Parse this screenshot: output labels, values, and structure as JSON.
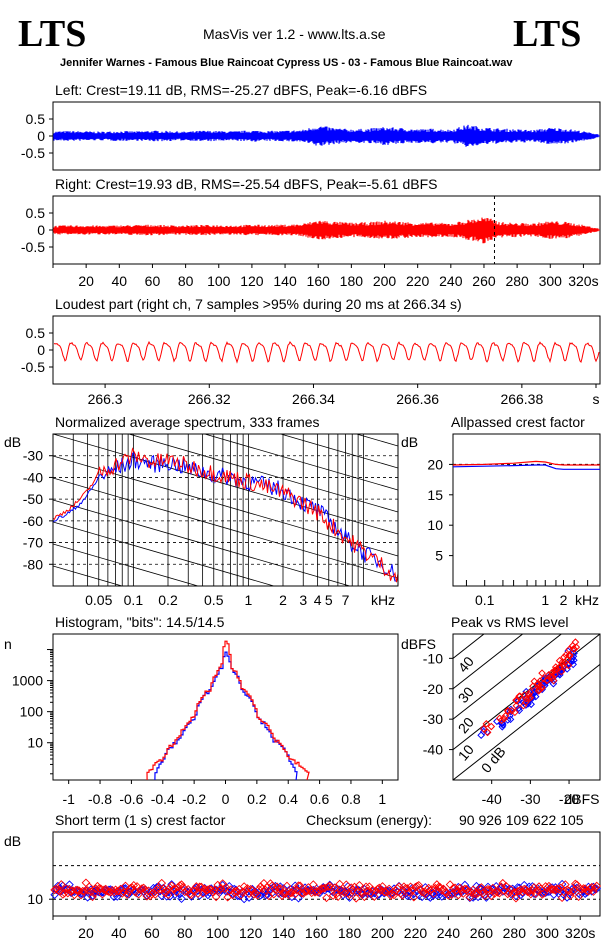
{
  "header": {
    "logo_left": "LTS",
    "logo_right": "LTS",
    "app_title": "MasVis ver 1.2 - www.lts.a.se",
    "file_name": "Jennifer Warnes - Famous Blue Raincoat Cypress US - 03 - Famous Blue Raincoat.wav"
  },
  "colors": {
    "left": "#0000ff",
    "right": "#ff0000",
    "axis": "#000000"
  },
  "chart_data": [
    {
      "id": "left",
      "type": "line",
      "title": "Left: Crest=19.11 dB, RMS=-25.27 dBFS, Peak=-6.16 dBFS",
      "yticks": [
        "0.5",
        "0",
        "-0.5"
      ],
      "ylim": [
        -1,
        1
      ],
      "xlim": [
        0,
        330
      ],
      "series": [
        {
          "color": "#0000ff",
          "x": [
            0,
            10,
            20,
            30,
            40,
            50,
            60,
            70,
            80,
            90,
            100,
            110,
            120,
            130,
            140,
            150,
            160,
            170,
            180,
            190,
            200,
            210,
            220,
            230,
            240,
            250,
            260,
            270,
            280,
            290,
            300,
            310,
            320,
            330
          ],
          "values": [
            0.14,
            0.15,
            0.14,
            0.13,
            0.15,
            0.14,
            0.16,
            0.15,
            0.13,
            0.16,
            0.15,
            0.14,
            0.17,
            0.15,
            0.16,
            0.18,
            0.32,
            0.24,
            0.2,
            0.22,
            0.27,
            0.24,
            0.2,
            0.22,
            0.19,
            0.34,
            0.26,
            0.22,
            0.2,
            0.18,
            0.25,
            0.22,
            0.14,
            0.05
          ]
        }
      ]
    },
    {
      "id": "right",
      "type": "line",
      "title": "Right: Crest=19.93 dB, RMS=-25.54 dBFS, Peak=-5.61 dBFS",
      "yticks": [
        "0.5",
        "0",
        "-0.5"
      ],
      "ylim": [
        -1,
        1
      ],
      "xlim": [
        0,
        330
      ],
      "xticks": [
        "20",
        "40",
        "60",
        "80",
        "100",
        "120",
        "140",
        "160",
        "180",
        "200",
        "220",
        "240",
        "260",
        "280",
        "300",
        "320s"
      ],
      "marker_x": 266.34,
      "series": [
        {
          "color": "#ff0000",
          "x": [
            0,
            10,
            20,
            30,
            40,
            50,
            60,
            70,
            80,
            90,
            100,
            110,
            120,
            130,
            140,
            150,
            160,
            170,
            180,
            190,
            200,
            210,
            220,
            230,
            240,
            250,
            260,
            270,
            280,
            290,
            300,
            310,
            320,
            330
          ],
          "values": [
            0.13,
            0.14,
            0.14,
            0.13,
            0.14,
            0.15,
            0.16,
            0.14,
            0.14,
            0.15,
            0.15,
            0.14,
            0.16,
            0.15,
            0.16,
            0.18,
            0.3,
            0.25,
            0.22,
            0.23,
            0.28,
            0.25,
            0.22,
            0.22,
            0.2,
            0.3,
            0.4,
            0.24,
            0.21,
            0.2,
            0.27,
            0.24,
            0.15,
            0.04
          ]
        }
      ]
    },
    {
      "id": "loudest",
      "type": "line",
      "title": "Loudest part (right ch, 7 samples >95% during 20 ms at 266.34 s)",
      "yticks": [
        "0.5",
        "0",
        "-0.5"
      ],
      "ylim": [
        -1,
        1
      ],
      "xlim": [
        266.29,
        266.395
      ],
      "xticks": [
        "266.3",
        "266.32",
        "266.34",
        "266.36",
        "266.38",
        "s"
      ],
      "series": [
        {
          "color": "#ff0000",
          "cycles": 35,
          "amplitude": 0.3
        }
      ]
    },
    {
      "id": "spectrum",
      "type": "line",
      "title": "Normalized average spectrum, 333 frames",
      "ylabel": "dB",
      "yticks": [
        "-30",
        "-40",
        "-50",
        "-60",
        "-70",
        "-80"
      ],
      "ylim": [
        -90,
        -20
      ],
      "xticks": [
        "0.05",
        "0.1",
        "0.2",
        "0.5",
        "1",
        "2",
        "3",
        "4",
        "5",
        "7",
        "kHz"
      ],
      "series": [
        {
          "color": "#0000ff",
          "x": [
            0.02,
            0.03,
            0.04,
            0.05,
            0.07,
            0.1,
            0.15,
            0.2,
            0.3,
            0.5,
            0.7,
            1,
            1.5,
            2,
            3,
            4,
            5,
            7,
            10,
            15,
            20
          ],
          "values": [
            -60,
            -55,
            -48,
            -40,
            -36,
            -32,
            -34,
            -33,
            -36,
            -39,
            -40,
            -42,
            -44,
            -46,
            -52,
            -55,
            -60,
            -68,
            -75,
            -80,
            -86
          ]
        },
        {
          "color": "#ff0000",
          "x": [
            0.02,
            0.03,
            0.04,
            0.05,
            0.07,
            0.1,
            0.15,
            0.2,
            0.3,
            0.5,
            0.7,
            1,
            1.5,
            2,
            3,
            4,
            5,
            7,
            10,
            15,
            20
          ],
          "values": [
            -59,
            -53,
            -46,
            -38,
            -34,
            -30,
            -33,
            -32,
            -35,
            -38,
            -40,
            -42,
            -45,
            -47,
            -52,
            -56,
            -61,
            -68,
            -74,
            -81,
            -87
          ]
        }
      ]
    },
    {
      "id": "allpass",
      "type": "line",
      "title": "Allpassed crest factor",
      "ylabel": "dB",
      "yticks": [
        "20",
        "15",
        "10",
        "5"
      ],
      "ylim": [
        0,
        25
      ],
      "xticks": [
        "0.1",
        "1",
        "2",
        "kHz"
      ],
      "series": [
        {
          "color": "#0000ff",
          "x": [
            0.03,
            0.1,
            0.3,
            0.7,
            1,
            1.5,
            2,
            5,
            20
          ],
          "values": [
            19.6,
            19.7,
            19.8,
            19.9,
            19.9,
            19.3,
            19.2,
            19.2,
            19.2
          ]
        },
        {
          "color": "#ff0000",
          "x": [
            0.03,
            0.1,
            0.3,
            0.7,
            1,
            1.5,
            2,
            5,
            20
          ],
          "values": [
            19.9,
            20.0,
            20.2,
            20.5,
            20.4,
            20.0,
            19.9,
            19.9,
            19.9
          ]
        }
      ]
    },
    {
      "id": "histogram",
      "type": "line",
      "title": "Histogram, \"bits\": 14.5/14.5",
      "ylabel": "n",
      "yticks": [
        "1000",
        "100",
        "10"
      ],
      "xticks": [
        "-1",
        "-0.8",
        "-0.6",
        "-0.4",
        "-0.2",
        "0",
        "0.2",
        "0.4",
        "0.6",
        "0.8",
        "1"
      ],
      "xlim": [
        -1.1,
        1.1
      ],
      "series": [
        {
          "color": "#0000ff",
          "x": [
            -0.45,
            -0.4,
            -0.3,
            -0.2,
            -0.1,
            -0.03,
            0,
            0.03,
            0.1,
            0.2,
            0.3,
            0.4,
            0.45
          ],
          "values": [
            1,
            3,
            12,
            60,
            500,
            2500,
            9000,
            2500,
            500,
            60,
            12,
            3,
            1
          ]
        },
        {
          "color": "#ff0000",
          "x": [
            -0.5,
            -0.4,
            -0.3,
            -0.2,
            -0.1,
            -0.03,
            0,
            0.03,
            0.1,
            0.2,
            0.3,
            0.4,
            0.52
          ],
          "values": [
            1,
            3,
            14,
            70,
            550,
            2700,
            20000,
            2700,
            550,
            70,
            14,
            3,
            1
          ]
        }
      ]
    },
    {
      "id": "peakrms",
      "type": "scatter",
      "title": "Peak vs RMS level",
      "ylabel": "dBFS",
      "xlabel": "dBFS",
      "yticks": [
        "-10",
        "-20",
        "-30",
        "-40"
      ],
      "xticks": [
        "-40",
        "-30",
        "-20"
      ],
      "diagonal_labels": [
        "40",
        "30",
        "20",
        "10",
        "0 dB"
      ],
      "series": [
        {
          "color": "#0000ff",
          "x": [
            -42,
            -38,
            -36,
            -34,
            -32,
            -31,
            -30,
            -29,
            -28,
            -27,
            -26,
            -25,
            -24,
            -23,
            -22,
            -21,
            -20,
            -19
          ],
          "values": [
            -34,
            -32,
            -30,
            -27,
            -25,
            -24,
            -22,
            -22,
            -20,
            -19,
            -18,
            -17,
            -16,
            -15,
            -14,
            -13,
            -11,
            -9
          ]
        },
        {
          "color": "#ff0000",
          "x": [
            -41,
            -37,
            -35,
            -33,
            -32,
            -30,
            -29,
            -28,
            -27,
            -26,
            -25,
            -24,
            -23,
            -22,
            -21,
            -20,
            -19,
            -18
          ],
          "values": [
            -33,
            -30,
            -28,
            -25,
            -23,
            -22,
            -20,
            -19,
            -18,
            -16,
            -16,
            -15,
            -13,
            -12,
            -11,
            -10,
            -8,
            -6
          ]
        }
      ]
    },
    {
      "id": "shortcrest",
      "type": "scatter",
      "title": "Short term (1 s) crest factor",
      "checksum_label": "Checksum (energy):",
      "checksum_value": "90 926 109 622 105",
      "ylabel": "dB",
      "yticks": [
        "10"
      ],
      "xlim": [
        0,
        332
      ],
      "xticks": [
        "20",
        "40",
        "60",
        "80",
        "100",
        "120",
        "140",
        "160",
        "180",
        "200",
        "220",
        "240",
        "260",
        "280",
        "300",
        "320s"
      ],
      "series": [
        {
          "color": "#0000ff",
          "mean": 12.3,
          "spread": 2.3
        },
        {
          "color": "#ff0000",
          "mean": 12.6,
          "spread": 2.4
        }
      ]
    }
  ]
}
